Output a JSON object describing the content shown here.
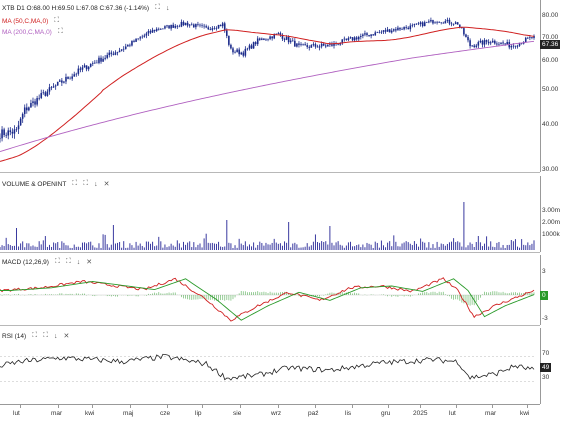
{
  "price": {
    "header": "XTB D1 O:68.00 H:69.50 L:67.08 C:67.36 (-1.14%)",
    "ma50_label": "MA (50,C,MA,0)",
    "ma200_label": "MA (200,C,MA,0)",
    "yticks": [
      "80.00",
      "70.00",
      "60.00",
      "50.00",
      "40.00",
      "30.00"
    ],
    "last_badge": "67.36",
    "colors": {
      "candle": "#1a2a8a",
      "ma50": "#d02020",
      "ma200": "#b060c0"
    }
  },
  "volume": {
    "header": "VOLUME & OPENINT",
    "yticks": [
      "3.00m",
      "2.00m",
      "1000k"
    ],
    "color": "#3a3aa0"
  },
  "macd": {
    "header": "MACD (12,26,9)",
    "yticks": [
      "3",
      "-3"
    ],
    "zero_badge": "0",
    "colors": {
      "macd": "#d02020",
      "signal": "#2a9a2a",
      "hist": "#2a9a2a"
    }
  },
  "rsi": {
    "header": "RSI (14)",
    "yticks": [
      "70",
      "30"
    ],
    "last_badge": "49"
  },
  "xaxis": [
    "lut",
    "mar",
    "kwi",
    "maj",
    "cze",
    "lip",
    "sie",
    "wrz",
    "paź",
    "lis",
    "gru",
    "2025",
    "lut",
    "mar",
    "kwi"
  ],
  "controls": {
    "expand": "⛶",
    "down": "↓",
    "close": "✕"
  }
}
